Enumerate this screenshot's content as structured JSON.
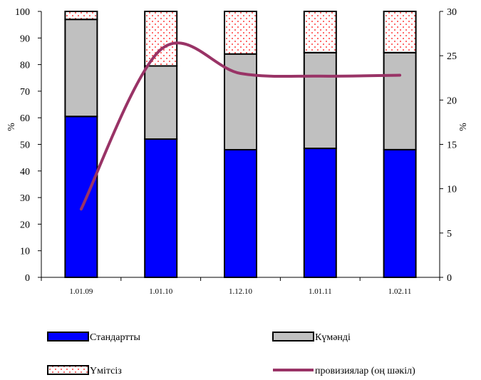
{
  "chart_data": {
    "type": "bar",
    "stacked": true,
    "categories": [
      "1.01.09",
      "1.01.10",
      "1.12.10",
      "1.01.11",
      "1.02.11"
    ],
    "series": [
      {
        "name": "Стандартты",
        "values": [
          60.5,
          52,
          48,
          48.5,
          48
        ],
        "color": "#0000ff",
        "pattern": "solid"
      },
      {
        "name": "Күмәнді",
        "values": [
          36.5,
          27.5,
          36,
          36,
          36.5
        ],
        "color": "#c0c0c0",
        "pattern": "solid"
      },
      {
        "name": "Үмітсіз",
        "values": [
          3,
          20.5,
          16,
          15.5,
          15.5
        ],
        "color": "#ff0000",
        "pattern": "dots"
      }
    ],
    "line": {
      "name": "провизиялар (оң шәкіл)",
      "values": [
        7.7,
        25.7,
        23.0,
        22.7,
        22.8
      ],
      "color": "#993366",
      "axis": "right"
    },
    "ylabel": "%",
    "ylabel_right": "%",
    "ylim": [
      0,
      100
    ],
    "ylim_right": [
      0,
      30
    ],
    "yticks": [
      0,
      10,
      20,
      30,
      40,
      50,
      60,
      70,
      80,
      90,
      100
    ],
    "yticks_right": [
      0,
      5,
      10,
      15,
      20,
      25,
      30
    ],
    "grid": false,
    "legend_placement": "bottom"
  }
}
